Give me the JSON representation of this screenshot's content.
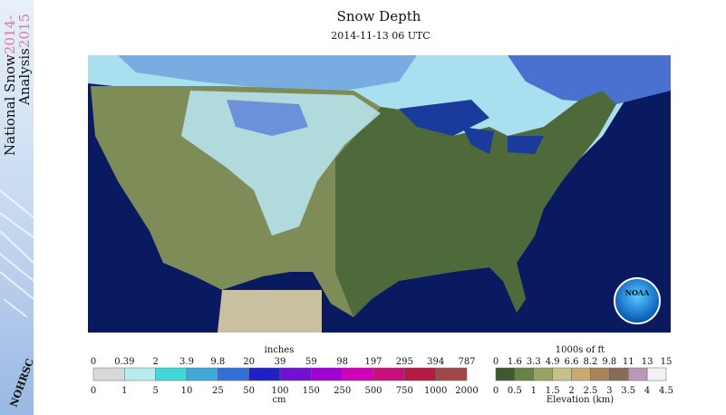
{
  "sidebar": {
    "line1": "National Snow",
    "years1": "2014-",
    "line2": "Analysis",
    "years2": "2015",
    "logo": "NOHRSC"
  },
  "header": {
    "title": "Snow Depth",
    "subtitle": "2014-11-13 06 UTC"
  },
  "map": {
    "logo": "NOAA"
  },
  "legend": {
    "snow_depth": {
      "top_label": "inches",
      "top_ticks": [
        "0",
        "0.39",
        "2",
        "3.9",
        "9.8",
        "20",
        "39",
        "59",
        "98",
        "197",
        "295",
        "394",
        "787"
      ],
      "bottom_ticks": [
        "0",
        "1",
        "5",
        "10",
        "25",
        "50",
        "100",
        "150",
        "250",
        "500",
        "750",
        "1000",
        "2000"
      ],
      "bottom_label": "cm",
      "colors": [
        "#d8d8d8",
        "#b8ecec",
        "#40d8d8",
        "#40a8d8",
        "#3070d8",
        "#2020c8",
        "#7010d0",
        "#a000d0",
        "#d000b8",
        "#c8107c",
        "#b41a44",
        "#a04848"
      ]
    },
    "elevation": {
      "top_label": "1000s of ft",
      "top_ticks": [
        "0",
        "1.6",
        "3.3",
        "4.9",
        "6.6",
        "8.2",
        "9.8",
        "11",
        "13",
        "15"
      ],
      "bottom_ticks": [
        "0",
        "0.5",
        "1",
        "1.5",
        "2",
        "2.5",
        "3",
        "3.5",
        "4",
        "4.5"
      ],
      "bottom_label": "Elevation (km)",
      "colors": [
        "#3c5a2c",
        "#6a8248",
        "#98a466",
        "#c8c08a",
        "#c8aa6e",
        "#a88458",
        "#8a6c56",
        "#b898b8",
        "#f4f0f4"
      ]
    }
  }
}
